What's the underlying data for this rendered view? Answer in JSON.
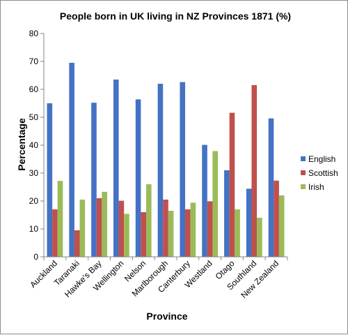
{
  "chart_data": {
    "type": "bar",
    "title": "People born in UK living in NZ Provinces 1871 (%)",
    "xlabel": "Province",
    "ylabel": "Percentage",
    "ylim": [
      0,
      80
    ],
    "yticks": [
      0,
      10,
      20,
      30,
      40,
      50,
      60,
      70,
      80
    ],
    "grid": false,
    "legend_position": "right",
    "categories": [
      "Auckland",
      "Taranaki",
      "Hawke's Bay",
      "Wellington",
      "Nelson",
      "Marlborough",
      "Canterbury",
      "Westland",
      "Otago",
      "Southland",
      "New Zealand"
    ],
    "series": [
      {
        "name": "English",
        "color": "#4472C4",
        "values": [
          55.0,
          69.5,
          55.2,
          63.5,
          56.4,
          62.0,
          62.6,
          40.1,
          31.0,
          24.4,
          49.6
        ]
      },
      {
        "name": "Scottish",
        "color": "#C0504D",
        "values": [
          17.0,
          9.5,
          21.0,
          20.1,
          16.0,
          20.5,
          17.0,
          19.9,
          51.6,
          61.5,
          27.3
        ]
      },
      {
        "name": "Irish",
        "color": "#9BBB59",
        "values": [
          27.2,
          20.5,
          23.3,
          15.4,
          26.0,
          16.5,
          19.4,
          37.9,
          17.0,
          14.0,
          22.0
        ]
      }
    ]
  }
}
